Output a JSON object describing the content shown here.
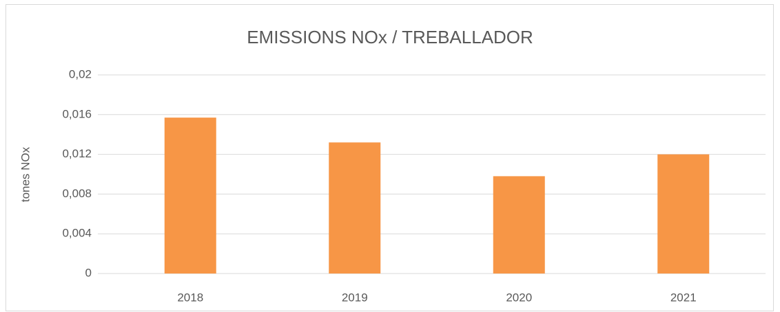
{
  "chart_data": {
    "type": "bar",
    "title": "EMISSIONS NOx / TREBALLADOR",
    "y_label": "tones NOx",
    "categories": [
      "2018",
      "2019",
      "2020",
      "2021"
    ],
    "values": [
      0.0157,
      0.0132,
      0.0098,
      0.012
    ],
    "color": "#f79646",
    "ylim": [
      0,
      0.02
    ],
    "yticks": [
      0,
      {
        "value": 0.004,
        "label": "0,004"
      },
      {
        "value": 0.008,
        "label": "0,008"
      },
      {
        "value": 0.012,
        "label": "0,012"
      },
      {
        "value": 0.016,
        "label": "0,016"
      },
      {
        "value": 0.02,
        "label": "0,02"
      }
    ],
    "grid": true
  }
}
